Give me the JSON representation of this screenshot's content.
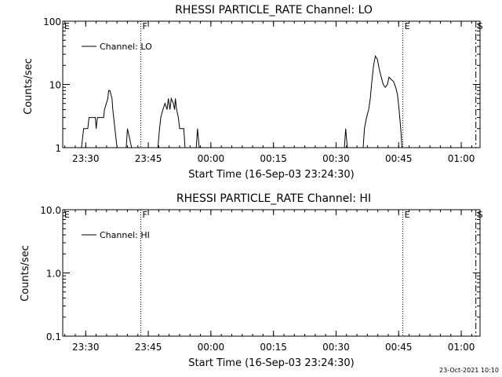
{
  "footer_timestamp": "23-Oct-2021 10:10",
  "chart_data": [
    {
      "type": "line",
      "title": "RHESSI PARTICLE_RATE Channel: LO",
      "xlabel": "Start Time (16-Sep-03 23:24:30)",
      "ylabel": "Counts/sec",
      "y_scale": "log",
      "ylim": [
        1,
        100
      ],
      "y_ticks": [
        1,
        10,
        100
      ],
      "y_tick_labels": [
        "1",
        "10",
        "100"
      ],
      "xlim_minutes_from_start": [
        0,
        100
      ],
      "x_ticks_minutes": [
        5.5,
        20.5,
        35.5,
        50.5,
        65.5,
        80.5,
        95.5
      ],
      "x_tick_labels": [
        "23:30",
        "23:45",
        "00:00",
        "00:15",
        "00:30",
        "00:45",
        "01:00"
      ],
      "legend": {
        "label": "Channel: LO",
        "placement": "top-left"
      },
      "markers": [
        {
          "label": "E",
          "x": 0,
          "style": "none"
        },
        {
          "label": "F",
          "x": 18.7,
          "style": "dotted"
        },
        {
          "label": "E",
          "x": 81.5,
          "style": "dotted"
        },
        {
          "label": "S",
          "x": 99.0,
          "style": "dashdot"
        }
      ],
      "series": [
        {
          "name": "Channel: LO",
          "segments": [
            [
              [
                4.5,
                1
              ],
              [
                5.0,
                2
              ],
              [
                6.0,
                2
              ],
              [
                6.3,
                3
              ],
              [
                7.8,
                3
              ],
              [
                8.0,
                2
              ],
              [
                8.3,
                3
              ],
              [
                9.8,
                3
              ],
              [
                10.0,
                4
              ],
              [
                10.8,
                6
              ],
              [
                11.0,
                8
              ],
              [
                11.3,
                8
              ],
              [
                11.8,
                6
              ],
              [
                12.0,
                4
              ],
              [
                12.5,
                2
              ],
              [
                13.0,
                1
              ]
            ],
            [
              [
                15.2,
                1
              ],
              [
                15.5,
                2
              ],
              [
                16.5,
                1
              ]
            ],
            [
              [
                22.8,
                1
              ],
              [
                23.2,
                2
              ],
              [
                23.5,
                3
              ],
              [
                24.0,
                4
              ],
              [
                24.5,
                5
              ],
              [
                25.0,
                4
              ],
              [
                25.3,
                6
              ],
              [
                25.7,
                4
              ],
              [
                26.0,
                6
              ],
              [
                26.5,
                5
              ],
              [
                26.8,
                4
              ],
              [
                27.0,
                6
              ],
              [
                27.3,
                4
              ],
              [
                27.7,
                3
              ],
              [
                28.0,
                2
              ],
              [
                29.0,
                2
              ],
              [
                29.3,
                1
              ]
            ],
            [
              [
                32.0,
                1
              ],
              [
                32.3,
                2
              ],
              [
                32.7,
                1
              ]
            ],
            [
              [
                67.5,
                1
              ],
              [
                67.8,
                2
              ],
              [
                68.2,
                1
              ]
            ],
            [
              [
                72.0,
                1
              ],
              [
                72.3,
                2
              ],
              [
                72.8,
                3
              ],
              [
                73.3,
                4
              ],
              [
                73.7,
                6
              ],
              [
                74.0,
                10
              ],
              [
                74.5,
                20
              ],
              [
                74.9,
                28
              ],
              [
                75.4,
                25
              ],
              [
                75.8,
                18
              ],
              [
                76.2,
                14
              ],
              [
                76.8,
                10
              ],
              [
                77.3,
                9
              ],
              [
                77.8,
                10
              ],
              [
                78.2,
                13
              ],
              [
                78.7,
                12
              ],
              [
                79.3,
                11
              ],
              [
                79.8,
                9
              ],
              [
                80.2,
                7
              ],
              [
                80.6,
                4
              ],
              [
                81.0,
                2
              ],
              [
                81.3,
                1
              ]
            ]
          ]
        }
      ]
    },
    {
      "type": "line",
      "title": "RHESSI PARTICLE_RATE Channel: HI",
      "xlabel": "Start Time (16-Sep-03 23:24:30)",
      "ylabel": "Counts/sec",
      "y_scale": "log",
      "ylim": [
        0.1,
        10
      ],
      "y_ticks": [
        0.1,
        1,
        10
      ],
      "y_tick_labels": [
        "0.1",
        "1.0",
        "10.0"
      ],
      "xlim_minutes_from_start": [
        0,
        100
      ],
      "x_ticks_minutes": [
        5.5,
        20.5,
        35.5,
        50.5,
        65.5,
        80.5,
        95.5
      ],
      "x_tick_labels": [
        "23:30",
        "23:45",
        "00:00",
        "00:15",
        "00:30",
        "00:45",
        "01:00"
      ],
      "legend": {
        "label": "Channel: HI",
        "placement": "top-left"
      },
      "markers": [
        {
          "label": "E",
          "x": 0,
          "style": "none"
        },
        {
          "label": "F",
          "x": 18.7,
          "style": "dotted"
        },
        {
          "label": "E",
          "x": 81.5,
          "style": "dotted"
        },
        {
          "label": "S",
          "x": 99.0,
          "style": "dashdot"
        }
      ],
      "series": [
        {
          "name": "Channel: HI",
          "segments": []
        }
      ]
    }
  ]
}
